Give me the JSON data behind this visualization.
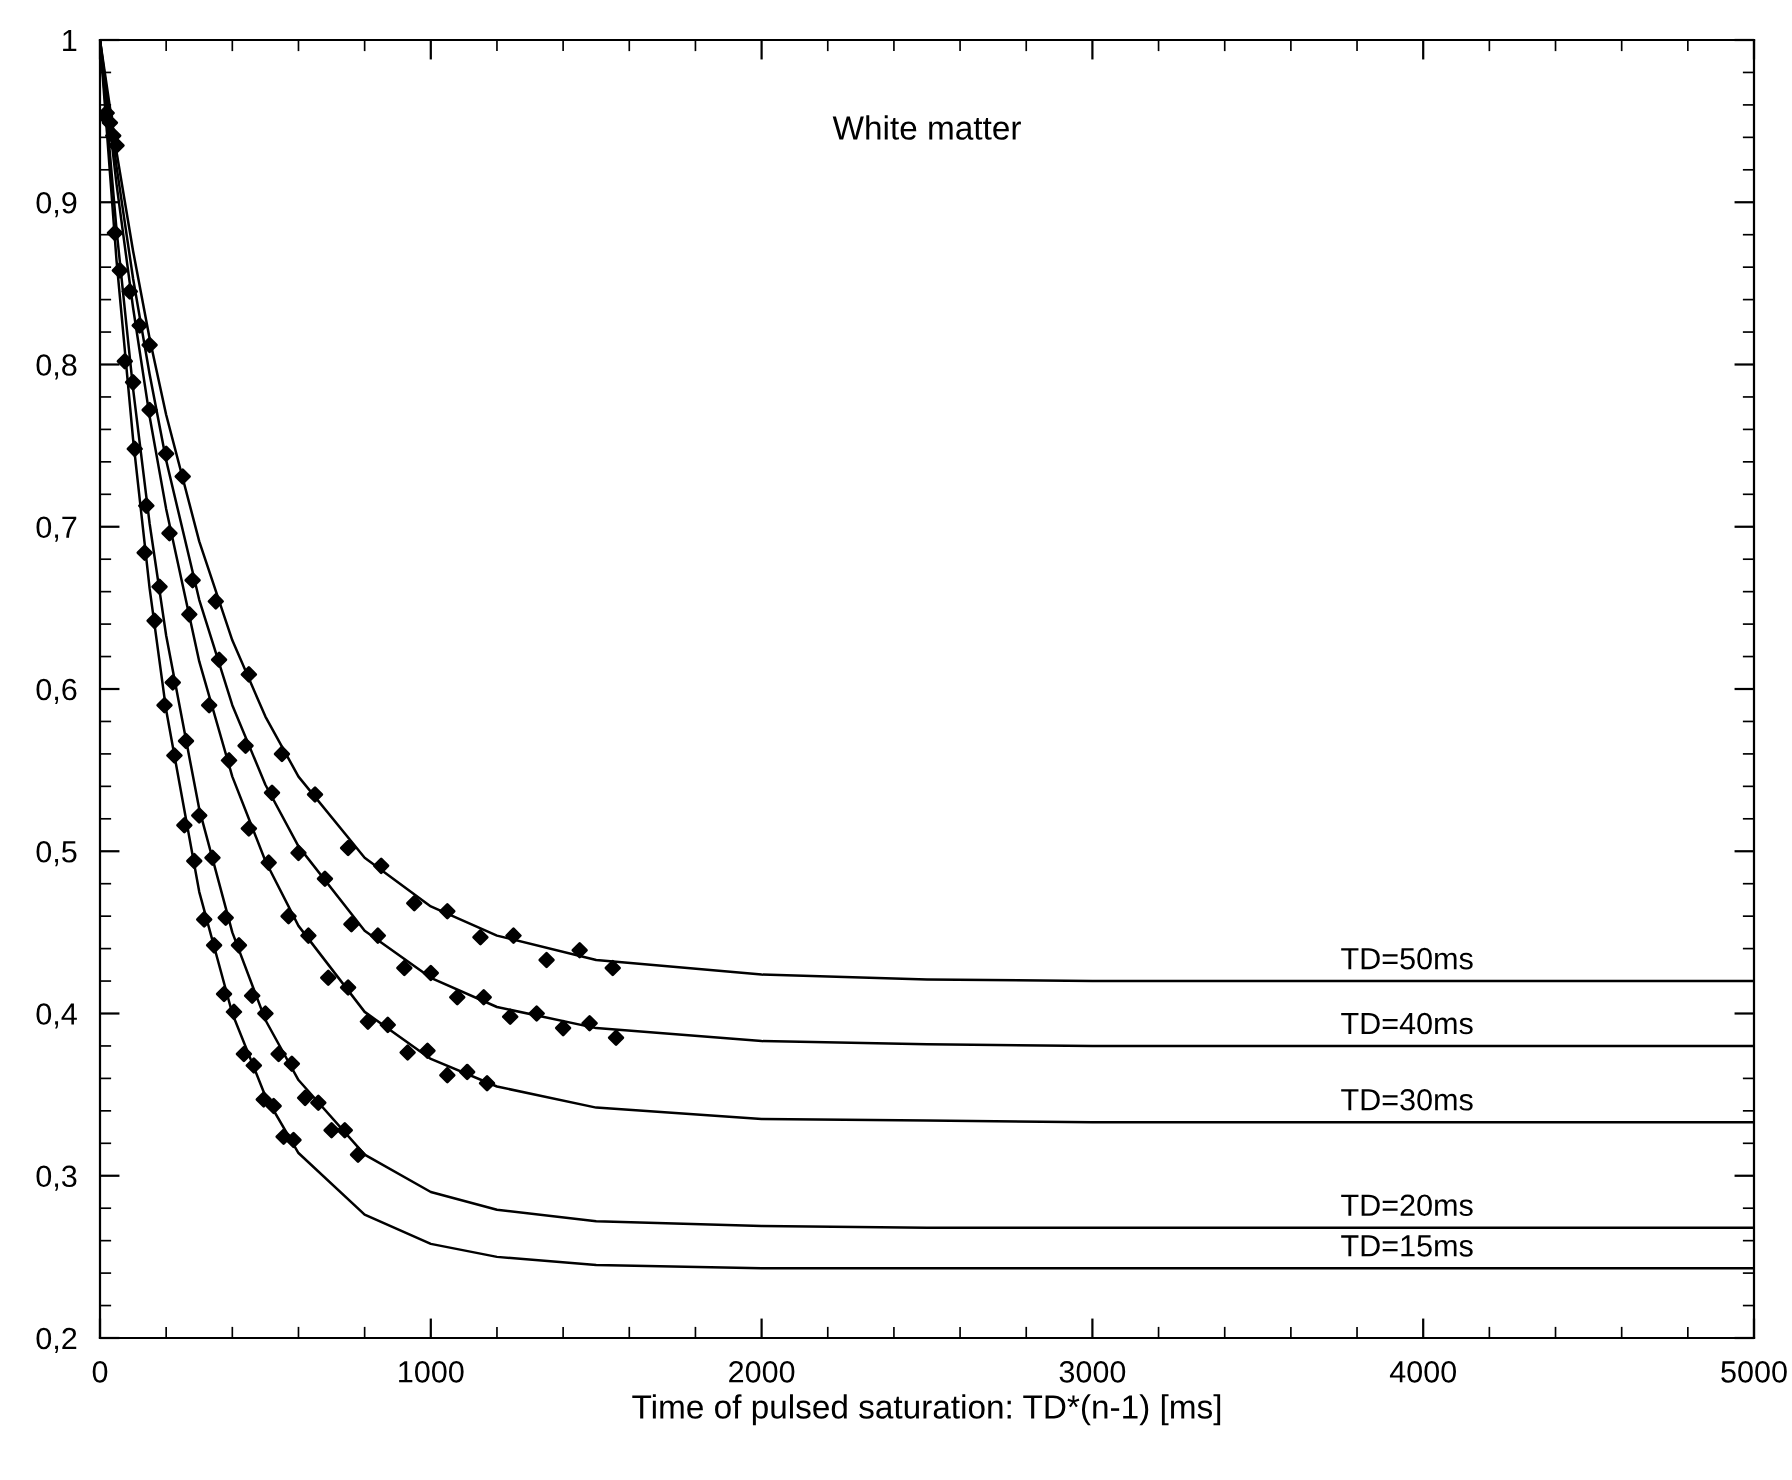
{
  "chart_data": {
    "type": "line",
    "title": "White matter",
    "xlabel": "Time of pulsed saturation: TD*(n-1) [ms]",
    "xlim": [
      0,
      5000
    ],
    "xticks": [
      0,
      1000,
      2000,
      3000,
      4000,
      5000
    ],
    "ylim": [
      0.2,
      1
    ],
    "yticks": [
      {
        "value": 0.2,
        "label": "0,2"
      },
      {
        "value": 0.3,
        "label": "0,3"
      },
      {
        "value": 0.4,
        "label": "0,4"
      },
      {
        "value": 0.5,
        "label": "0,5"
      },
      {
        "value": 0.6,
        "label": "0,6"
      },
      {
        "value": 0.7,
        "label": "0,7"
      },
      {
        "value": 0.8,
        "label": "0,8"
      },
      {
        "value": 0.9,
        "label": "0,9"
      },
      {
        "value": 1,
        "label": "1"
      }
    ],
    "grid": false,
    "legend": false,
    "line_style": "solid",
    "series": [
      {
        "name": "TD=50ms",
        "color": "#000000",
        "marker": "none",
        "x": [
          0,
          50,
          100,
          150,
          200,
          300,
          400,
          500,
          600,
          800,
          1000,
          1200,
          1500,
          2000,
          2500,
          3000,
          4000,
          5000
        ],
        "values": [
          1,
          0.931,
          0.87,
          0.816,
          0.769,
          0.691,
          0.63,
          0.583,
          0.546,
          0.496,
          0.466,
          0.448,
          0.433,
          0.424,
          0.421,
          0.42,
          0.42,
          0.42
        ]
      },
      {
        "name": "TD=40ms",
        "color": "#000000",
        "marker": "none",
        "x": [
          0,
          50,
          100,
          150,
          200,
          300,
          400,
          500,
          600,
          800,
          1000,
          1200,
          1500,
          2000,
          2500,
          3000,
          4000,
          5000
        ],
        "values": [
          1,
          0.922,
          0.853,
          0.794,
          0.741,
          0.655,
          0.59,
          0.541,
          0.503,
          0.451,
          0.422,
          0.404,
          0.391,
          0.383,
          0.381,
          0.38,
          0.38,
          0.38
        ]
      },
      {
        "name": "TD=30ms",
        "color": "#000000",
        "marker": "none",
        "x": [
          0,
          50,
          100,
          150,
          200,
          300,
          400,
          500,
          600,
          800,
          1000,
          1200,
          1500,
          2000,
          2500,
          3000,
          4000,
          5000
        ],
        "values": [
          1,
          0.911,
          0.835,
          0.768,
          0.711,
          0.617,
          0.546,
          0.494,
          0.454,
          0.401,
          0.372,
          0.355,
          0.342,
          0.335,
          0.334,
          0.333,
          0.333,
          0.333
        ]
      },
      {
        "name": "TD=20ms",
        "color": "#000000",
        "marker": "none",
        "x": [
          0,
          50,
          100,
          150,
          200,
          300,
          400,
          500,
          600,
          800,
          1000,
          1200,
          1500,
          2000,
          2500,
          3000,
          4000,
          5000
        ],
        "values": [
          1,
          0.883,
          0.785,
          0.702,
          0.633,
          0.526,
          0.45,
          0.396,
          0.359,
          0.313,
          0.29,
          0.279,
          0.272,
          0.269,
          0.268,
          0.268,
          0.268,
          0.268
        ]
      },
      {
        "name": "TD=15ms",
        "color": "#000000",
        "marker": "none",
        "x": [
          0,
          50,
          100,
          150,
          200,
          300,
          400,
          500,
          600,
          800,
          1000,
          1200,
          1500,
          2000,
          2500,
          3000,
          4000,
          5000
        ],
        "values": [
          1,
          0.864,
          0.754,
          0.662,
          0.587,
          0.475,
          0.4,
          0.349,
          0.314,
          0.276,
          0.258,
          0.25,
          0.245,
          0.243,
          0.243,
          0.243,
          0.243,
          0.243
        ]
      },
      {
        "type": "scatter",
        "color": "#000000",
        "marker": "diamond",
        "x": [
          50,
          150,
          250,
          350,
          450,
          550,
          650,
          750,
          850,
          950,
          1050,
          1150,
          1250,
          1350,
          1450,
          1550
        ],
        "values": [
          0.935,
          0.812,
          0.731,
          0.654,
          0.609,
          0.56,
          0.535,
          0.502,
          0.491,
          0.468,
          0.463,
          0.447,
          0.448,
          0.433,
          0.439,
          0.428
        ]
      },
      {
        "type": "scatter",
        "color": "#000000",
        "marker": "diamond",
        "x": [
          40,
          120,
          200,
          280,
          360,
          440,
          520,
          600,
          680,
          760,
          840,
          920,
          1000,
          1080,
          1160,
          1240,
          1320,
          1400,
          1480,
          1560
        ],
        "values": [
          0.941,
          0.824,
          0.745,
          0.667,
          0.618,
          0.565,
          0.536,
          0.499,
          0.483,
          0.455,
          0.448,
          0.428,
          0.425,
          0.41,
          0.41,
          0.398,
          0.4,
          0.391,
          0.394,
          0.385
        ]
      },
      {
        "type": "scatter",
        "color": "#000000",
        "marker": "diamond",
        "x": [
          30,
          90,
          150,
          210,
          270,
          330,
          390,
          450,
          510,
          570,
          630,
          690,
          750,
          810,
          870,
          930,
          990,
          1050,
          1110,
          1170
        ],
        "values": [
          0.949,
          0.845,
          0.772,
          0.696,
          0.646,
          0.59,
          0.556,
          0.514,
          0.493,
          0.46,
          0.448,
          0.422,
          0.416,
          0.395,
          0.393,
          0.376,
          0.377,
          0.362,
          0.364,
          0.357
        ]
      },
      {
        "type": "scatter",
        "color": "#000000",
        "marker": "diamond",
        "x": [
          20,
          60,
          100,
          140,
          180,
          220,
          260,
          300,
          340,
          380,
          420,
          460,
          500,
          540,
          580,
          620,
          660,
          700,
          740,
          780
        ],
        "values": [
          0.955,
          0.858,
          0.789,
          0.713,
          0.663,
          0.604,
          0.568,
          0.522,
          0.496,
          0.459,
          0.442,
          0.411,
          0.4,
          0.375,
          0.369,
          0.348,
          0.345,
          0.328,
          0.328,
          0.313
        ]
      },
      {
        "type": "scatter",
        "color": "#000000",
        "marker": "diamond",
        "x": [
          15,
          45,
          75,
          105,
          135,
          165,
          195,
          225,
          255,
          285,
          315,
          345,
          375,
          405,
          435,
          465,
          495,
          525,
          555,
          585
        ],
        "values": [
          0.953,
          0.881,
          0.802,
          0.748,
          0.684,
          0.642,
          0.59,
          0.559,
          0.516,
          0.494,
          0.458,
          0.442,
          0.412,
          0.401,
          0.375,
          0.368,
          0.347,
          0.343,
          0.324,
          0.322
        ]
      }
    ]
  }
}
